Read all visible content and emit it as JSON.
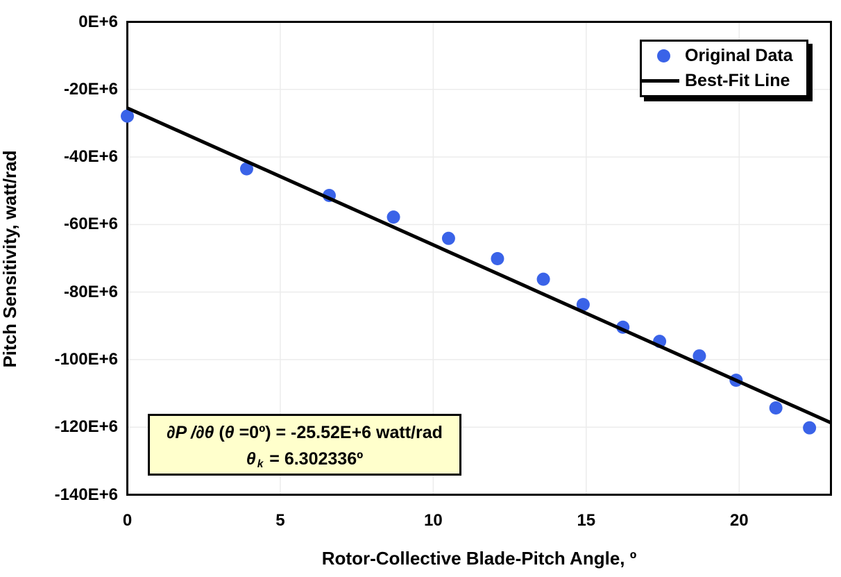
{
  "chart_data": {
    "type": "scatter",
    "title": "",
    "xlabel": "Rotor-Collective Blade-Pitch Angle, º",
    "ylabel": "Pitch Sensitivity, watt/rad",
    "xlim": [
      0,
      23
    ],
    "ylim": [
      -140,
      0
    ],
    "y_values_unit": "1E+6 watt/rad",
    "xticks": [
      0,
      5,
      10,
      15,
      20
    ],
    "xtick_labels": [
      "0",
      "5",
      "10",
      "15",
      "20"
    ],
    "yticks": [
      0,
      -20,
      -40,
      -60,
      -80,
      -100,
      -120,
      -140
    ],
    "ytick_labels": [
      "0E+6",
      "-20E+6",
      "-40E+6",
      "-60E+6",
      "-80E+6",
      "-100E+6",
      "-120E+6",
      "-140E+6"
    ],
    "grid": true,
    "grid_color": "#ececec",
    "frame_color": "#000000",
    "legend_position": "top-right",
    "series": [
      {
        "name": "Original Data",
        "type": "scatter",
        "color": "#3a63e8",
        "marker": "circle",
        "points": [
          [
            0.0,
            -27.9
          ],
          [
            3.9,
            -43.5
          ],
          [
            6.6,
            -51.4
          ],
          [
            8.7,
            -57.8
          ],
          [
            10.5,
            -64.1
          ],
          [
            12.1,
            -70.1
          ],
          [
            13.6,
            -76.2
          ],
          [
            14.9,
            -83.7
          ],
          [
            16.2,
            -90.4
          ],
          [
            17.4,
            -94.6
          ],
          [
            18.7,
            -98.9
          ],
          [
            19.9,
            -106.1
          ],
          [
            21.2,
            -114.3
          ],
          [
            22.3,
            -120.2
          ]
        ]
      },
      {
        "name": "Best-Fit Line",
        "type": "line",
        "color": "#000000",
        "points": [
          [
            0,
            -25.52
          ],
          [
            23,
            -118.7
          ]
        ]
      }
    ],
    "annotation": {
      "background": "#ffffcc",
      "text_line1": "∂P /∂θ (θ =0º) = -25.52E+6 watt/rad",
      "text_line2": "θ k = 6.302336º",
      "segments_line1": [
        {
          "t": "∂P /∂θ ",
          "i": true
        },
        {
          "t": "(",
          "i": false
        },
        {
          "t": "θ",
          "i": true
        },
        {
          "t": " =0º) = -25.52E+6 watt/rad",
          "i": false
        }
      ],
      "segments_line2": [
        {
          "t": "θ",
          "i": true
        },
        {
          "t": "k",
          "i": true,
          "sub": true
        },
        {
          "t": " = 6.302336º",
          "i": false
        }
      ]
    }
  }
}
